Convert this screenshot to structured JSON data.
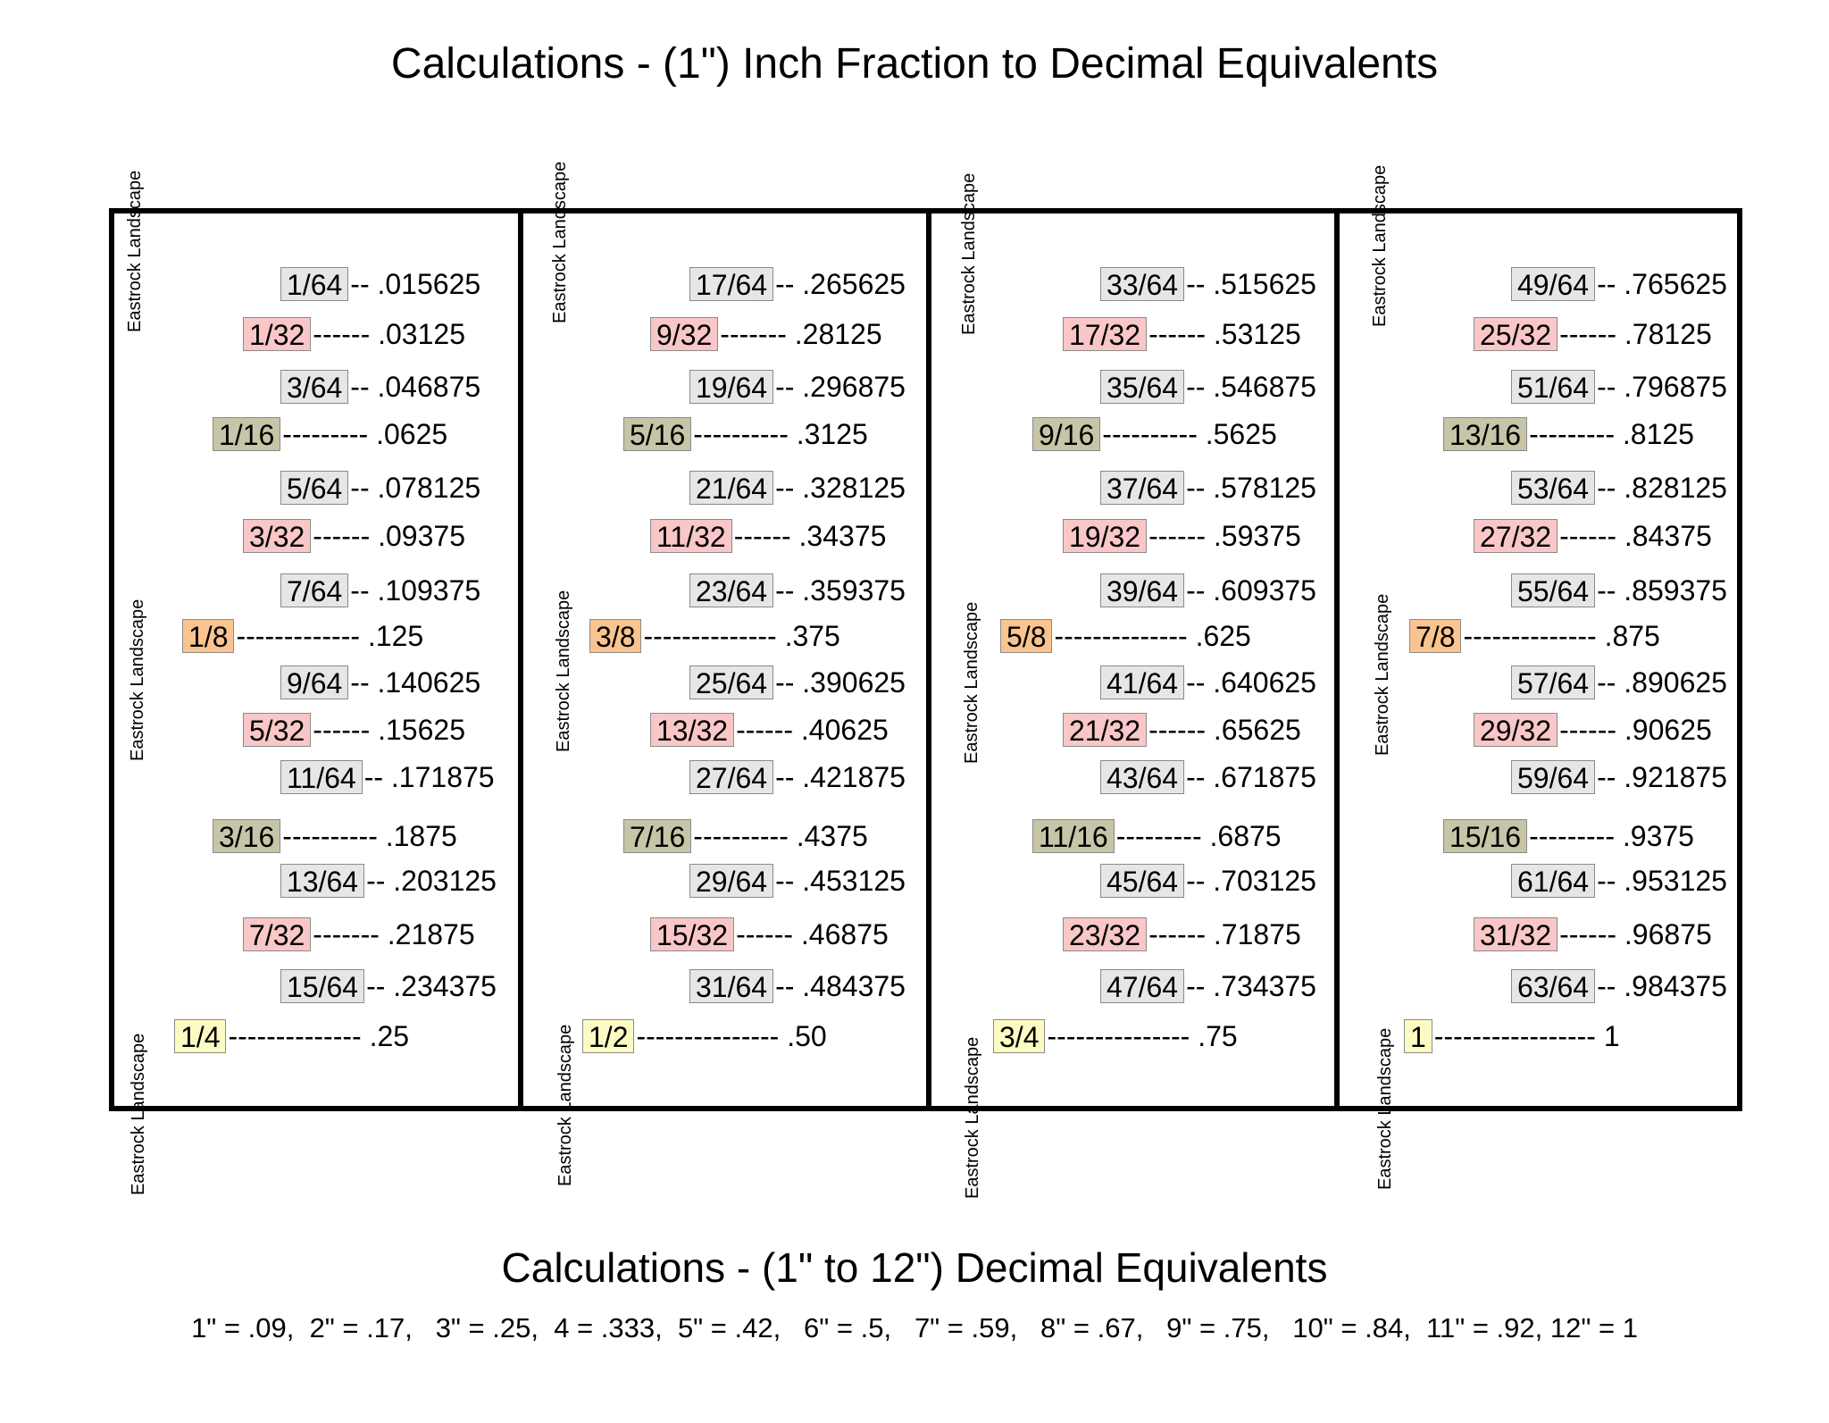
{
  "title": "Calculations - (1\") Inch Fraction to Decimal Equivalents",
  "watermark": "Eastrock Landscape",
  "columns": [
    {
      "rows": [
        {
          "fraction": "1/64",
          "leader": "--",
          "decimal": ".015625",
          "size": "s64"
        },
        {
          "fraction": "1/32",
          "leader": "------",
          "decimal": ".03125",
          "size": "s32"
        },
        {
          "fraction": "3/64",
          "leader": "--",
          "decimal": ".046875",
          "size": "s64"
        },
        {
          "fraction": "1/16",
          "leader": "---------",
          "decimal": ".0625",
          "size": "s16"
        },
        {
          "fraction": "5/64",
          "leader": "--",
          "decimal": ".078125",
          "size": "s64"
        },
        {
          "fraction": "3/32",
          "leader": "------",
          "decimal": ".09375",
          "size": "s32"
        },
        {
          "fraction": "7/64",
          "leader": "--",
          "decimal": ".109375",
          "size": "s64"
        },
        {
          "fraction": "1/8",
          "leader": "-------------",
          "decimal": ".125",
          "size": "s8"
        },
        {
          "fraction": "9/64",
          "leader": "--",
          "decimal": ".140625",
          "size": "s64"
        },
        {
          "fraction": "5/32",
          "leader": "------",
          "decimal": ".15625",
          "size": "s32"
        },
        {
          "fraction": "11/64",
          "leader": "--",
          "decimal": ".171875",
          "size": "s64"
        },
        {
          "fraction": "3/16",
          "leader": "----------",
          "decimal": ".1875",
          "size": "s16"
        },
        {
          "fraction": "13/64",
          "leader": "--",
          "decimal": ".203125",
          "size": "s64"
        },
        {
          "fraction": "7/32",
          "leader": "-------",
          "decimal": ".21875",
          "size": "s32"
        },
        {
          "fraction": "15/64",
          "leader": "--",
          "decimal": ".234375",
          "size": "s64"
        },
        {
          "fraction": "1/4",
          "leader": "--------------",
          "decimal": ".25",
          "size": "s4"
        }
      ]
    },
    {
      "rows": [
        {
          "fraction": "17/64",
          "leader": "--",
          "decimal": ".265625",
          "size": "s64"
        },
        {
          "fraction": "9/32",
          "leader": "-------",
          "decimal": ".28125",
          "size": "s32"
        },
        {
          "fraction": "19/64",
          "leader": "--",
          "decimal": ".296875",
          "size": "s64"
        },
        {
          "fraction": "5/16",
          "leader": "----------",
          "decimal": ".3125",
          "size": "s16"
        },
        {
          "fraction": "21/64",
          "leader": "--",
          "decimal": ".328125",
          "size": "s64"
        },
        {
          "fraction": "11/32",
          "leader": "------",
          "decimal": ".34375",
          "size": "s32"
        },
        {
          "fraction": "23/64",
          "leader": "--",
          "decimal": ".359375",
          "size": "s64"
        },
        {
          "fraction": "3/8",
          "leader": "--------------",
          "decimal": ".375",
          "size": "s8"
        },
        {
          "fraction": "25/64",
          "leader": "--",
          "decimal": ".390625",
          "size": "s64"
        },
        {
          "fraction": "13/32",
          "leader": "------",
          "decimal": ".40625",
          "size": "s32"
        },
        {
          "fraction": "27/64",
          "leader": "--",
          "decimal": ".421875",
          "size": "s64"
        },
        {
          "fraction": "7/16",
          "leader": "----------",
          "decimal": ".4375",
          "size": "s16"
        },
        {
          "fraction": "29/64",
          "leader": "--",
          "decimal": ".453125",
          "size": "s64"
        },
        {
          "fraction": "15/32",
          "leader": "------",
          "decimal": ".46875",
          "size": "s32"
        },
        {
          "fraction": "31/64",
          "leader": "--",
          "decimal": ".484375",
          "size": "s64"
        },
        {
          "fraction": "1/2",
          "leader": "---------------",
          "decimal": ".50",
          "size": "s4"
        }
      ]
    },
    {
      "rows": [
        {
          "fraction": "33/64",
          "leader": "--",
          "decimal": ".515625",
          "size": "s64"
        },
        {
          "fraction": "17/32",
          "leader": "------",
          "decimal": ".53125",
          "size": "s32"
        },
        {
          "fraction": "35/64",
          "leader": "--",
          "decimal": ".546875",
          "size": "s64"
        },
        {
          "fraction": "9/16",
          "leader": "----------",
          "decimal": ".5625",
          "size": "s16"
        },
        {
          "fraction": "37/64",
          "leader": "--",
          "decimal": ".578125",
          "size": "s64"
        },
        {
          "fraction": "19/32",
          "leader": "------",
          "decimal": ".59375",
          "size": "s32"
        },
        {
          "fraction": "39/64",
          "leader": "--",
          "decimal": ".609375",
          "size": "s64"
        },
        {
          "fraction": "5/8",
          "leader": "--------------",
          "decimal": ".625",
          "size": "s8"
        },
        {
          "fraction": "41/64",
          "leader": "--",
          "decimal": ".640625",
          "size": "s64"
        },
        {
          "fraction": "21/32",
          "leader": "------",
          "decimal": ".65625",
          "size": "s32"
        },
        {
          "fraction": "43/64",
          "leader": "--",
          "decimal": ".671875",
          "size": "s64"
        },
        {
          "fraction": "11/16",
          "leader": "---------",
          "decimal": ".6875",
          "size": "s16"
        },
        {
          "fraction": "45/64",
          "leader": "--",
          "decimal": ".703125",
          "size": "s64"
        },
        {
          "fraction": "23/32",
          "leader": "------",
          "decimal": ".71875",
          "size": "s32"
        },
        {
          "fraction": "47/64",
          "leader": "--",
          "decimal": ".734375",
          "size": "s64"
        },
        {
          "fraction": "3/4",
          "leader": "---------------",
          "decimal": ".75",
          "size": "s4"
        }
      ]
    },
    {
      "rows": [
        {
          "fraction": "49/64",
          "leader": "--",
          "decimal": ".765625",
          "size": "s64"
        },
        {
          "fraction": "25/32",
          "leader": "------",
          "decimal": ".78125",
          "size": "s32"
        },
        {
          "fraction": "51/64",
          "leader": "--",
          "decimal": ".796875",
          "size": "s64"
        },
        {
          "fraction": "13/16",
          "leader": "---------",
          "decimal": ".8125",
          "size": "s16"
        },
        {
          "fraction": "53/64",
          "leader": "--",
          "decimal": ".828125",
          "size": "s64"
        },
        {
          "fraction": "27/32",
          "leader": "------",
          "decimal": ".84375",
          "size": "s32"
        },
        {
          "fraction": "55/64",
          "leader": "--",
          "decimal": ".859375",
          "size": "s64"
        },
        {
          "fraction": "7/8",
          "leader": "--------------",
          "decimal": ".875",
          "size": "s8"
        },
        {
          "fraction": "57/64",
          "leader": "--",
          "decimal": ".890625",
          "size": "s64"
        },
        {
          "fraction": "29/32",
          "leader": "------",
          "decimal": ".90625",
          "size": "s32"
        },
        {
          "fraction": "59/64",
          "leader": "--",
          "decimal": ".921875",
          "size": "s64"
        },
        {
          "fraction": "15/16",
          "leader": "---------",
          "decimal": ".9375",
          "size": "s16"
        },
        {
          "fraction": "61/64",
          "leader": "--",
          "decimal": ".953125",
          "size": "s64"
        },
        {
          "fraction": "31/32",
          "leader": "------",
          "decimal": ".96875",
          "size": "s32"
        },
        {
          "fraction": "63/64",
          "leader": "--",
          "decimal": ".984375",
          "size": "s64"
        },
        {
          "fraction": "1",
          "leader": "-----------------",
          "decimal": "1",
          "size": "s4"
        }
      ]
    }
  ],
  "subtitle": "Calculations - (1\" to 12\") Decimal Equivalents",
  "equivalents": "1\" = .09,  2\" = .17,   3\" = .25,  4 = .333,  5\" = .42,   6\" = .5,   7\" = .59,   8\" = .67,   9\" = .75,   10\" = .84,  11\" = .92, 12\" = 1"
}
